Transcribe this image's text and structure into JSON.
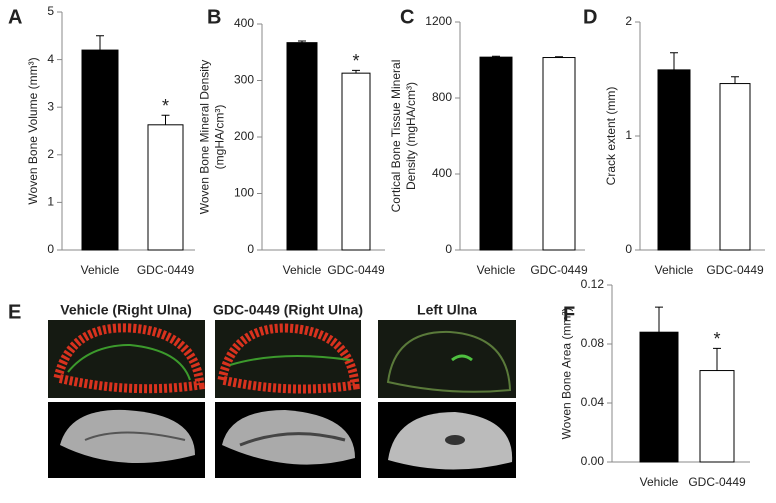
{
  "chart_data": [
    {
      "type": "bar",
      "panel": "A",
      "ylabel": [
        "Woven Bone Volume (mm³)"
      ],
      "categories": [
        "Vehicle",
        "GDC-0449"
      ],
      "values": [
        4.2,
        2.63
      ],
      "errors": [
        0.3,
        0.2
      ],
      "colors": [
        "#000000",
        "#ffffff"
      ],
      "ylim": [
        0,
        5
      ],
      "yticks": [
        0,
        1,
        2,
        3,
        4,
        5
      ],
      "annotations": [
        {
          "text": "*",
          "category": "GDC-0449"
        }
      ]
    },
    {
      "type": "bar",
      "panel": "B",
      "ylabel": [
        "Woven Bone Mineral Density",
        "(mgHA/cm³)"
      ],
      "categories": [
        "Vehicle",
        "GDC-0449"
      ],
      "values": [
        367,
        313
      ],
      "errors": [
        3,
        5
      ],
      "colors": [
        "#000000",
        "#ffffff"
      ],
      "ylim": [
        0,
        400
      ],
      "yticks": [
        0,
        100,
        200,
        300,
        400
      ],
      "annotations": [
        {
          "text": "*",
          "category": "GDC-0449"
        }
      ]
    },
    {
      "type": "bar",
      "panel": "C",
      "ylabel": [
        "Cortical Bone Tissue Mineral",
        "Density (mgHA/cm³)"
      ],
      "categories": [
        "Vehicle",
        "GDC-0449"
      ],
      "values": [
        1015,
        1013
      ],
      "errors": [
        5,
        4
      ],
      "colors": [
        "#000000",
        "#ffffff"
      ],
      "ylim": [
        0,
        1200
      ],
      "yticks": [
        0,
        400,
        800,
        1200
      ],
      "annotations": []
    },
    {
      "type": "bar",
      "panel": "D",
      "ylabel": [
        "Crack extent (mm)"
      ],
      "categories": [
        "Vehicle",
        "GDC-0449"
      ],
      "values": [
        1.58,
        1.46
      ],
      "errors": [
        0.15,
        0.06
      ],
      "colors": [
        "#000000",
        "#ffffff"
      ],
      "ylim": [
        0,
        2
      ],
      "yticks": [
        0,
        1,
        2
      ],
      "annotations": []
    },
    {
      "type": "bar",
      "panel": "F",
      "ylabel": [
        "Woven Bone Area (mm²)"
      ],
      "categories": [
        "Vehicle",
        "GDC-0449"
      ],
      "values": [
        0.088,
        0.062
      ],
      "errors": [
        0.017,
        0.015
      ],
      "colors": [
        "#000000",
        "#ffffff"
      ],
      "ylim": [
        0,
        0.12
      ],
      "yticks": [
        {
          "value": 0,
          "label": "0.00"
        },
        0.04,
        0.08,
        0.12
      ],
      "annotations": [
        {
          "text": "*",
          "category": "GDC-0449"
        }
      ]
    }
  ],
  "panel_e": {
    "panel": "E",
    "titles": [
      "Vehicle (Right Ulna)",
      "GDC-0449 (Right Ulna)",
      "Left Ulna"
    ]
  }
}
